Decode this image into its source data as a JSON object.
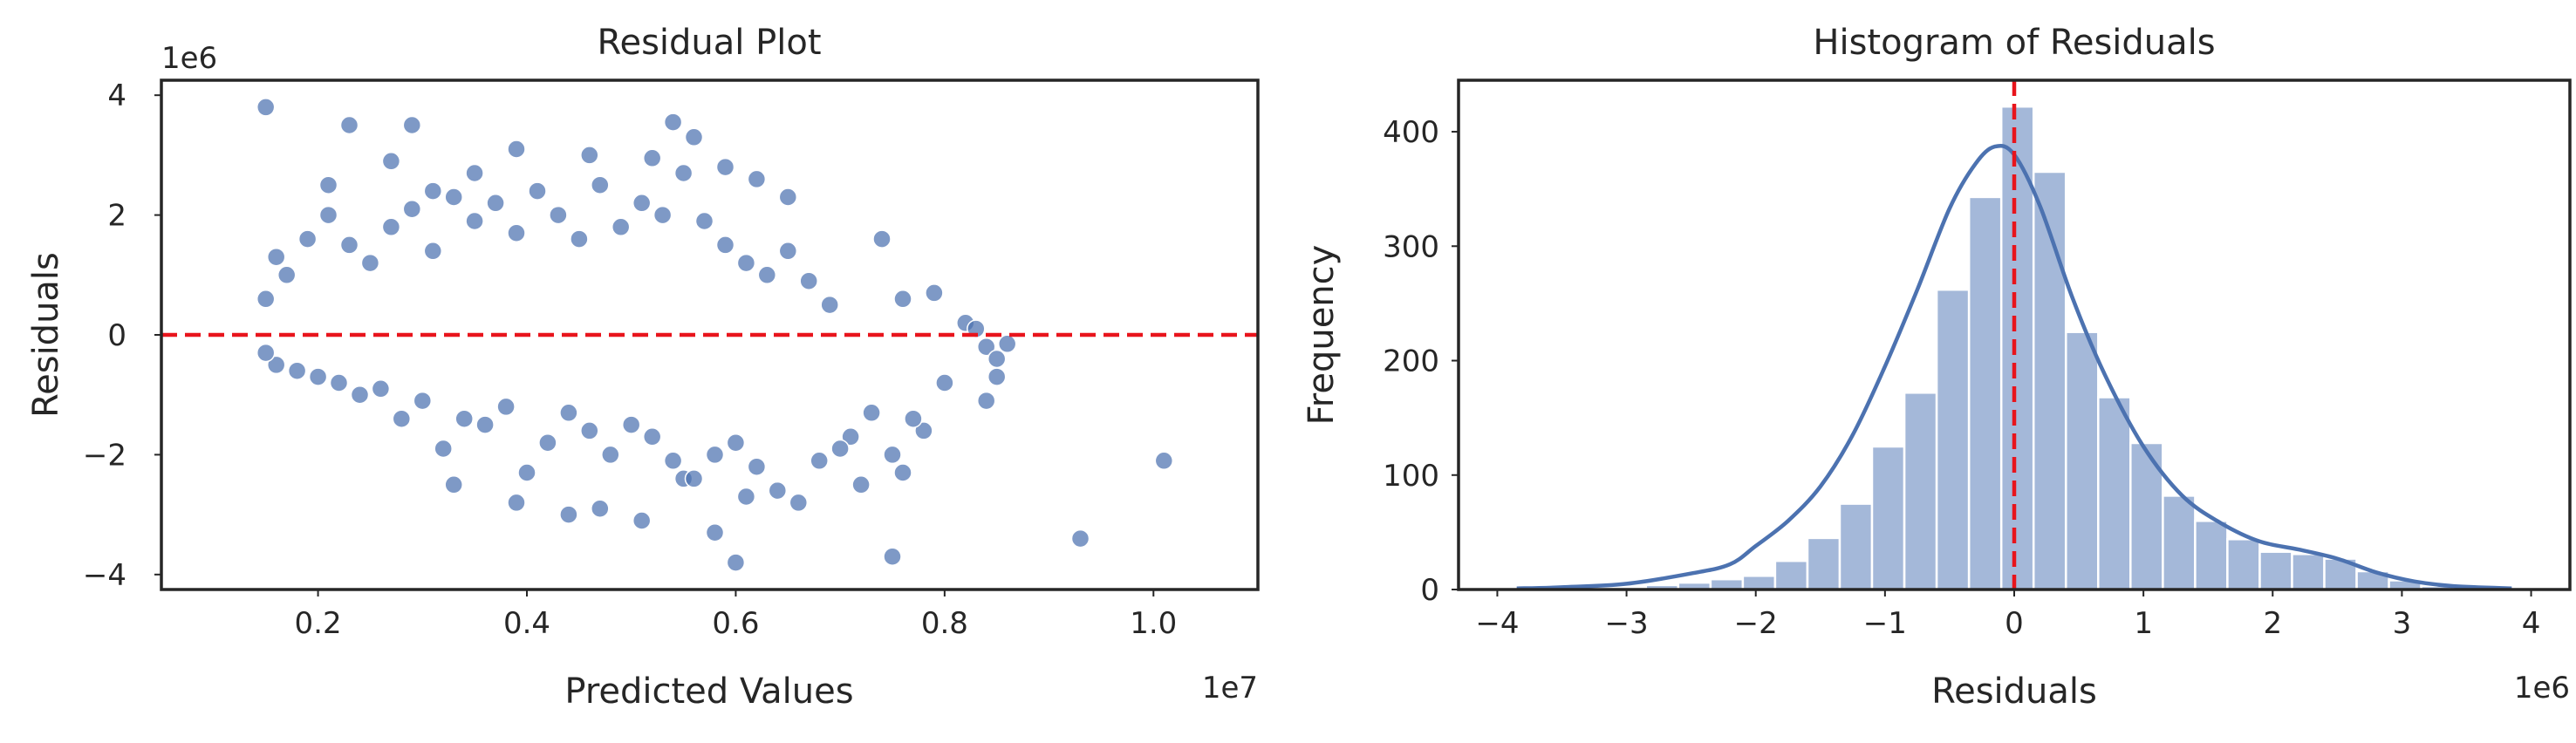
{
  "colors": {
    "points": "#4c72b0",
    "bars": "#a4b8d9",
    "kde": "#4c72b0",
    "refline": "#e8141c",
    "axes": "#262626"
  },
  "chart_data": [
    {
      "type": "scatter",
      "title": "Residual Plot",
      "xlabel": "Predicted Values",
      "ylabel": "Residuals",
      "x_offset_label": "1e7",
      "y_offset_label": "1e6",
      "xlim": [
        0.05,
        1.1
      ],
      "ylim": [
        -4.25,
        4.25
      ],
      "x_ticks": [
        0.2,
        0.4,
        0.6,
        0.8,
        1.0
      ],
      "x_tick_labels": [
        "0.2",
        "0.4",
        "0.6",
        "0.8",
        "1.0"
      ],
      "y_ticks": [
        -4,
        -2,
        0,
        2,
        4
      ],
      "y_tick_labels": [
        "−4",
        "−2",
        "0",
        "2",
        "4"
      ],
      "reference_line": {
        "y": 0,
        "style": "dashed"
      },
      "grid": false,
      "points": {
        "x": [
          0.15,
          0.23,
          0.29,
          0.54,
          0.56,
          0.39,
          0.27,
          0.35,
          0.21,
          0.31,
          0.62,
          0.65,
          0.59,
          0.46,
          0.52,
          0.74,
          0.76,
          0.79,
          0.82,
          0.84,
          0.86,
          0.85,
          0.84,
          0.78,
          0.73,
          0.71,
          0.75,
          0.76,
          0.61,
          0.55,
          0.75,
          0.6,
          1.01,
          0.93,
          0.85,
          0.83,
          0.8,
          0.77,
          0.72,
          0.7,
          0.68,
          0.66,
          0.64,
          0.62,
          0.6,
          0.58,
          0.56,
          0.54,
          0.52,
          0.5,
          0.48,
          0.46,
          0.44,
          0.42,
          0.4,
          0.38,
          0.36,
          0.34,
          0.32,
          0.3,
          0.28,
          0.26,
          0.24,
          0.22,
          0.2,
          0.18,
          0.16,
          0.15,
          0.15,
          0.16,
          0.17,
          0.19,
          0.21,
          0.23,
          0.25,
          0.27,
          0.29,
          0.31,
          0.33,
          0.35,
          0.37,
          0.39,
          0.41,
          0.43,
          0.45,
          0.47,
          0.49,
          0.51,
          0.53,
          0.55,
          0.57,
          0.59,
          0.61,
          0.63,
          0.65,
          0.67,
          0.69,
          0.33,
          0.44,
          0.51,
          0.58,
          0.47,
          0.39
        ],
        "y": [
          3.8,
          3.5,
          3.5,
          3.55,
          3.3,
          3.1,
          2.9,
          2.7,
          2.5,
          2.4,
          2.6,
          2.3,
          2.8,
          3.0,
          2.95,
          1.6,
          0.6,
          0.7,
          0.2,
          -0.2,
          -0.15,
          -0.7,
          -1.1,
          -1.6,
          -1.3,
          -1.7,
          -2.0,
          -2.3,
          -2.7,
          -2.4,
          -3.7,
          -3.8,
          -2.1,
          -3.4,
          -0.4,
          0.1,
          -0.8,
          -1.4,
          -2.5,
          -1.9,
          -2.1,
          -2.8,
          -2.6,
          -2.2,
          -1.8,
          -2.0,
          -2.4,
          -2.1,
          -1.7,
          -1.5,
          -2.0,
          -1.6,
          -1.3,
          -1.8,
          -2.3,
          -1.2,
          -1.5,
          -1.4,
          -1.9,
          -1.1,
          -1.4,
          -0.9,
          -1.0,
          -0.8,
          -0.7,
          -0.6,
          -0.5,
          -0.3,
          0.6,
          1.3,
          1.0,
          1.6,
          2.0,
          1.5,
          1.2,
          1.8,
          2.1,
          1.4,
          2.3,
          1.9,
          2.2,
          1.7,
          2.4,
          2.0,
          1.6,
          2.5,
          1.8,
          2.2,
          2.0,
          2.7,
          1.9,
          1.5,
          1.2,
          1.0,
          1.4,
          0.9,
          0.5,
          -2.5,
          -3.0,
          -3.1,
          -3.3,
          -2.9,
          -2.8
        ]
      }
    },
    {
      "type": "bar",
      "title": "Histogram of Residuals",
      "xlabel": "Residuals",
      "ylabel": "Frequency",
      "x_offset_label": "1e6",
      "xlim": [
        -4.3,
        4.3
      ],
      "ylim": [
        0,
        445
      ],
      "x_ticks": [
        -4,
        -3,
        -2,
        -1,
        0,
        1,
        2,
        3,
        4
      ],
      "x_tick_labels": [
        "−4",
        "−3",
        "−2",
        "−1",
        "0",
        "1",
        "2",
        "3",
        "4"
      ],
      "y_ticks": [
        0,
        100,
        200,
        300,
        400
      ],
      "y_tick_labels": [
        "0",
        "100",
        "200",
        "300",
        "400"
      ],
      "reference_line": {
        "x": 0,
        "style": "dashed"
      },
      "grid": false,
      "bins": [
        -3.85,
        -3.6,
        -3.35,
        -3.1,
        -2.85,
        -2.6,
        -2.35,
        -2.1,
        -1.85,
        -1.6,
        -1.35,
        -1.1,
        -0.85,
        -0.6,
        -0.35,
        -0.1,
        0.15,
        0.4,
        0.65,
        0.9,
        1.15,
        1.4,
        1.65,
        1.9,
        2.15,
        2.4,
        2.65,
        2.9,
        3.15,
        3.4,
        3.65,
        3.85
      ],
      "counts": [
        1,
        1,
        2,
        2,
        4,
        6,
        9,
        12,
        25,
        45,
        75,
        125,
        172,
        262,
        343,
        422,
        365,
        225,
        168,
        128,
        82,
        60,
        44,
        33,
        31,
        27,
        16,
        8,
        3,
        2,
        1
      ],
      "kde": {
        "x": [
          -3.85,
          -3.5,
          -3.0,
          -2.5,
          -2.2,
          -2.0,
          -1.75,
          -1.5,
          -1.25,
          -1.0,
          -0.75,
          -0.5,
          -0.3,
          -0.15,
          0.0,
          0.2,
          0.45,
          0.7,
          1.0,
          1.3,
          1.6,
          1.9,
          2.2,
          2.5,
          2.8,
          3.1,
          3.4,
          3.85
        ],
        "y": [
          1,
          2,
          5,
          14,
          22,
          38,
          60,
          90,
          135,
          195,
          262,
          333,
          372,
          387,
          380,
          335,
          255,
          188,
          125,
          82,
          58,
          42,
          35,
          27,
          15,
          7,
          3,
          1
        ]
      }
    }
  ]
}
